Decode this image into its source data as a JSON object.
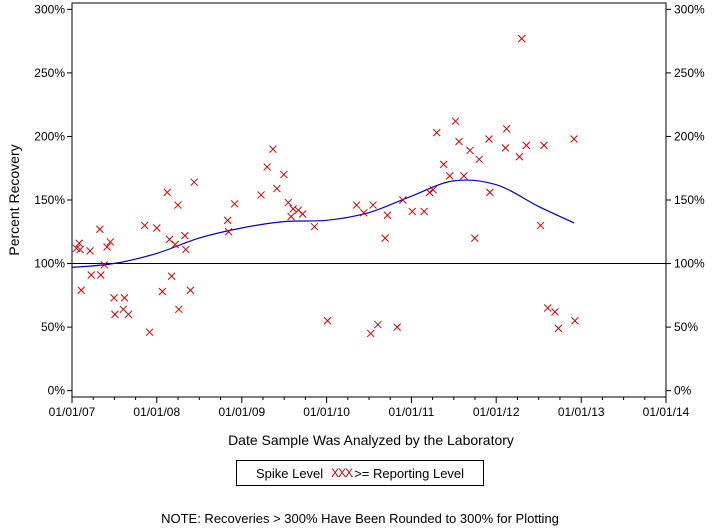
{
  "chart_data": {
    "type": "scatter",
    "title": "",
    "xlabel": "Date Sample Was Analyzed by the Laboratory",
    "ylabel": "Percent Recovery",
    "xlim": [
      "2007-01-01",
      "2014-01-01"
    ],
    "ylim": [
      -5,
      305
    ],
    "yticks": [
      0,
      50,
      100,
      150,
      200,
      250,
      300
    ],
    "ytick_labels": [
      "0%",
      "50%",
      "100%",
      "150%",
      "200%",
      "250%",
      "300%"
    ],
    "xticks": [
      "2007-01-01",
      "2008-01-01",
      "2009-01-01",
      "2010-01-01",
      "2011-01-01",
      "2012-01-01",
      "2013-01-01",
      "2014-01-01"
    ],
    "xtick_labels": [
      "01/01/07",
      "01/01/08",
      "01/01/09",
      "01/01/10",
      "01/01/11",
      "01/01/12",
      "01/01/13",
      "01/01/14"
    ],
    "reference_line": 100,
    "grid": false,
    "marker_color": "#d40000",
    "trend_color": "#0000cc",
    "series": [
      {
        "name": ">= Reporting Level",
        "points": [
          [
            "2007-01-20",
            112
          ],
          [
            "2007-02-01",
            116
          ],
          [
            "2007-02-05",
            111
          ],
          [
            "2007-02-10",
            79
          ],
          [
            "2007-03-20",
            110
          ],
          [
            "2007-03-25",
            91
          ],
          [
            "2007-05-01",
            127
          ],
          [
            "2007-05-05",
            91
          ],
          [
            "2007-05-20",
            99
          ],
          [
            "2007-06-01",
            113
          ],
          [
            "2007-06-15",
            117
          ],
          [
            "2007-07-01",
            73
          ],
          [
            "2007-07-05",
            60
          ],
          [
            "2007-08-10",
            64
          ],
          [
            "2007-08-15",
            73
          ],
          [
            "2007-09-01",
            60
          ],
          [
            "2007-11-10",
            130
          ],
          [
            "2007-12-01",
            46
          ],
          [
            "2008-01-01",
            128
          ],
          [
            "2008-01-25",
            78
          ],
          [
            "2008-02-15",
            156
          ],
          [
            "2008-02-25",
            119
          ],
          [
            "2008-03-05",
            90
          ],
          [
            "2008-03-20",
            115
          ],
          [
            "2008-04-01",
            146
          ],
          [
            "2008-04-05",
            64
          ],
          [
            "2008-05-01",
            122
          ],
          [
            "2008-05-05",
            111
          ],
          [
            "2008-05-25",
            79
          ],
          [
            "2008-06-10",
            164
          ],
          [
            "2008-11-01",
            134
          ],
          [
            "2008-11-05",
            125
          ],
          [
            "2008-12-01",
            147
          ],
          [
            "2009-03-25",
            154
          ],
          [
            "2009-04-20",
            176
          ],
          [
            "2009-05-15",
            190
          ],
          [
            "2009-06-01",
            159
          ],
          [
            "2009-07-01",
            170
          ],
          [
            "2009-07-20",
            148
          ],
          [
            "2009-08-01",
            137
          ],
          [
            "2009-08-10",
            143
          ],
          [
            "2009-09-01",
            142
          ],
          [
            "2009-09-20",
            139
          ],
          [
            "2009-11-10",
            129
          ],
          [
            "2010-01-05",
            55
          ],
          [
            "2010-05-10",
            146
          ],
          [
            "2010-06-10",
            140
          ],
          [
            "2010-07-10",
            45
          ],
          [
            "2010-07-20",
            146
          ],
          [
            "2010-08-10",
            52
          ],
          [
            "2010-09-10",
            120
          ],
          [
            "2010-09-20",
            138
          ],
          [
            "2010-11-01",
            50
          ],
          [
            "2010-11-25",
            150
          ],
          [
            "2011-01-05",
            141
          ],
          [
            "2011-02-25",
            141
          ],
          [
            "2011-03-20",
            156
          ],
          [
            "2011-04-05",
            158
          ],
          [
            "2011-04-20",
            203
          ],
          [
            "2011-05-20",
            178
          ],
          [
            "2011-06-15",
            169
          ],
          [
            "2011-07-10",
            212
          ],
          [
            "2011-07-25",
            196
          ],
          [
            "2011-08-15",
            169
          ],
          [
            "2011-09-10",
            189
          ],
          [
            "2011-10-01",
            120
          ],
          [
            "2011-10-20",
            182
          ],
          [
            "2011-12-01",
            198
          ],
          [
            "2011-12-05",
            156
          ],
          [
            "2012-02-10",
            191
          ],
          [
            "2012-02-15",
            206
          ],
          [
            "2012-04-10",
            184
          ],
          [
            "2012-04-20",
            277
          ],
          [
            "2012-05-10",
            193
          ],
          [
            "2012-07-10",
            130
          ],
          [
            "2012-07-25",
            193
          ],
          [
            "2012-08-10",
            65
          ],
          [
            "2012-09-10",
            62
          ],
          [
            "2012-09-25",
            49
          ],
          [
            "2012-12-01",
            198
          ],
          [
            "2012-12-05",
            55
          ]
        ]
      },
      {
        "name": "Trend (smoothed)",
        "points": [
          [
            "2007-01-01",
            97
          ],
          [
            "2007-07-01",
            100
          ],
          [
            "2008-01-01",
            108
          ],
          [
            "2008-07-01",
            120
          ],
          [
            "2009-01-01",
            128
          ],
          [
            "2009-07-01",
            133
          ],
          [
            "2010-01-01",
            134
          ],
          [
            "2010-07-01",
            140
          ],
          [
            "2011-01-01",
            153
          ],
          [
            "2011-07-01",
            165
          ],
          [
            "2012-01-01",
            162
          ],
          [
            "2012-07-01",
            145
          ],
          [
            "2012-12-01",
            132
          ]
        ]
      }
    ],
    "legend": {
      "label": "Spike Level",
      "marker_text": "XXX",
      "entry": ">= Reporting Level",
      "placement": "bottom-center"
    },
    "note": "NOTE: Recoveries > 300% Have Been Rounded to 300% for Plotting"
  }
}
